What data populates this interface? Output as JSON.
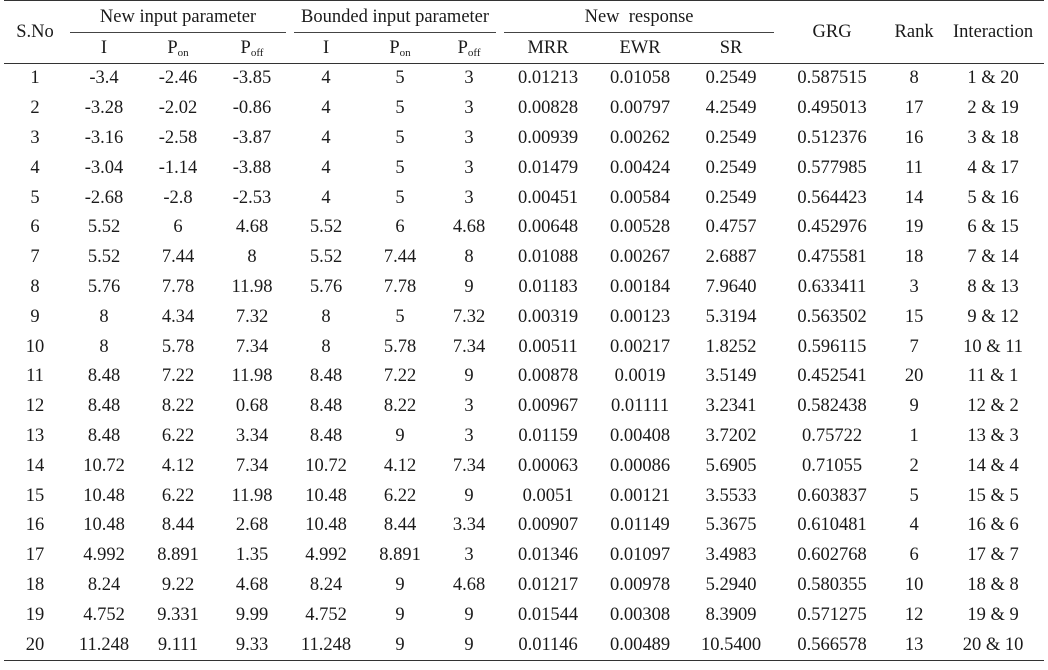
{
  "headers": {
    "sno": "S.No",
    "new_input": "New input parameter",
    "bounded_input": "Bounded input parameter",
    "new_response": "New  response",
    "grg": "GRG",
    "rank": "Rank",
    "interaction": "Interaction",
    "i": "I",
    "p": "P",
    "on": "on",
    "off": "off",
    "mrr": "MRR",
    "ewr": "EWR",
    "sr": "SR"
  },
  "rows": [
    [
      "1",
      "-3.4",
      "-2.46",
      "-3.85",
      "4",
      "5",
      "3",
      "0.01213",
      "0.01058",
      "0.2549",
      "0.587515",
      "8",
      "1 & 20"
    ],
    [
      "2",
      "-3.28",
      "-2.02",
      "-0.86",
      "4",
      "5",
      "3",
      "0.00828",
      "0.00797",
      "4.2549",
      "0.495013",
      "17",
      "2 & 19"
    ],
    [
      "3",
      "-3.16",
      "-2.58",
      "-3.87",
      "4",
      "5",
      "3",
      "0.00939",
      "0.00262",
      "0.2549",
      "0.512376",
      "16",
      "3 & 18"
    ],
    [
      "4",
      "-3.04",
      "-1.14",
      "-3.88",
      "4",
      "5",
      "3",
      "0.01479",
      "0.00424",
      "0.2549",
      "0.577985",
      "11",
      "4 & 17"
    ],
    [
      "5",
      "-2.68",
      "-2.8",
      "-2.53",
      "4",
      "5",
      "3",
      "0.00451",
      "0.00584",
      "0.2549",
      "0.564423",
      "14",
      "5 & 16"
    ],
    [
      "6",
      "5.52",
      "6",
      "4.68",
      "5.52",
      "6",
      "4.68",
      "0.00648",
      "0.00528",
      "0.4757",
      "0.452976",
      "19",
      "6 & 15"
    ],
    [
      "7",
      "5.52",
      "7.44",
      "8",
      "5.52",
      "7.44",
      "8",
      "0.01088",
      "0.00267",
      "2.6887",
      "0.475581",
      "18",
      "7 & 14"
    ],
    [
      "8",
      "5.76",
      "7.78",
      "11.98",
      "5.76",
      "7.78",
      "9",
      "0.01183",
      "0.00184",
      "7.9640",
      "0.633411",
      "3",
      "8 & 13"
    ],
    [
      "9",
      "8",
      "4.34",
      "7.32",
      "8",
      "5",
      "7.32",
      "0.00319",
      "0.00123",
      "5.3194",
      "0.563502",
      "15",
      "9 & 12"
    ],
    [
      "10",
      "8",
      "5.78",
      "7.34",
      "8",
      "5.78",
      "7.34",
      "0.00511",
      "0.00217",
      "1.8252",
      "0.596115",
      "7",
      "10 & 11"
    ],
    [
      "11",
      "8.48",
      "7.22",
      "11.98",
      "8.48",
      "7.22",
      "9",
      "0.00878",
      "0.0019",
      "3.5149",
      "0.452541",
      "20",
      "11 & 1"
    ],
    [
      "12",
      "8.48",
      "8.22",
      "0.68",
      "8.48",
      "8.22",
      "3",
      "0.00967",
      "0.01111",
      "3.2341",
      "0.582438",
      "9",
      "12 & 2"
    ],
    [
      "13",
      "8.48",
      "6.22",
      "3.34",
      "8.48",
      "9",
      "3",
      "0.01159",
      "0.00408",
      "3.7202",
      "0.75722",
      "1",
      "13 & 3"
    ],
    [
      "14",
      "10.72",
      "4.12",
      "7.34",
      "10.72",
      "4.12",
      "7.34",
      "0.00063",
      "0.00086",
      "5.6905",
      "0.71055",
      "2",
      "14 & 4"
    ],
    [
      "15",
      "10.48",
      "6.22",
      "11.98",
      "10.48",
      "6.22",
      "9",
      "0.0051",
      "0.00121",
      "3.5533",
      "0.603837",
      "5",
      "15 & 5"
    ],
    [
      "16",
      "10.48",
      "8.44",
      "2.68",
      "10.48",
      "8.44",
      "3.34",
      "0.00907",
      "0.01149",
      "5.3675",
      "0.610481",
      "4",
      "16 & 6"
    ],
    [
      "17",
      "4.992",
      "8.891",
      "1.35",
      "4.992",
      "8.891",
      "3",
      "0.01346",
      "0.01097",
      "3.4983",
      "0.602768",
      "6",
      "17 & 7"
    ],
    [
      "18",
      "8.24",
      "9.22",
      "4.68",
      "8.24",
      "9",
      "4.68",
      "0.01217",
      "0.00978",
      "5.2940",
      "0.580355",
      "10",
      "18 & 8"
    ],
    [
      "19",
      "4.752",
      "9.331",
      "9.99",
      "4.752",
      "9",
      "9",
      "0.01544",
      "0.00308",
      "8.3909",
      "0.571275",
      "12",
      "19 & 9"
    ],
    [
      "20",
      "11.248",
      "9.111",
      "9.33",
      "11.248",
      "9",
      "9",
      "0.01146",
      "0.00489",
      "10.5400",
      "0.566578",
      "13",
      "20 & 10"
    ]
  ]
}
